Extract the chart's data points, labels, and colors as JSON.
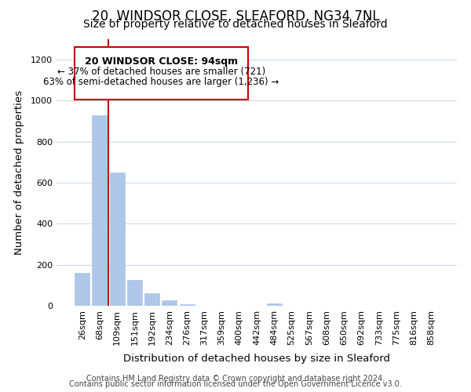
{
  "title": "20, WINDSOR CLOSE, SLEAFORD, NG34 7NL",
  "subtitle": "Size of property relative to detached houses in Sleaford",
  "xlabel": "Distribution of detached houses by size in Sleaford",
  "ylabel": "Number of detached properties",
  "bar_labels": [
    "26sqm",
    "68sqm",
    "109sqm",
    "151sqm",
    "192sqm",
    "234sqm",
    "276sqm",
    "317sqm",
    "359sqm",
    "400sqm",
    "442sqm",
    "484sqm",
    "525sqm",
    "567sqm",
    "608sqm",
    "650sqm",
    "692sqm",
    "733sqm",
    "775sqm",
    "816sqm",
    "858sqm"
  ],
  "bar_values": [
    160,
    930,
    650,
    125,
    60,
    28,
    8,
    0,
    0,
    0,
    0,
    10,
    0,
    0,
    0,
    0,
    0,
    0,
    0,
    0,
    0
  ],
  "bar_color": "#aec6e8",
  "vline_x": 1.5,
  "vline_color": "#cc0000",
  "ylim": [
    0,
    1300
  ],
  "yticks": [
    0,
    200,
    400,
    600,
    800,
    1000,
    1200
  ],
  "annotation_title": "20 WINDSOR CLOSE: 94sqm",
  "annotation_line1": "← 37% of detached houses are smaller (721)",
  "annotation_line2": "63% of semi-detached houses are larger (1,236) →",
  "footer_line1": "Contains HM Land Registry data © Crown copyright and database right 2024.",
  "footer_line2": "Contains public sector information licensed under the Open Government Licence v3.0.",
  "bg_color": "#ffffff",
  "grid_color": "#d0d8e8",
  "title_fontsize": 12,
  "subtitle_fontsize": 10,
  "axis_label_fontsize": 9.5,
  "tick_fontsize": 8,
  "footer_fontsize": 7
}
